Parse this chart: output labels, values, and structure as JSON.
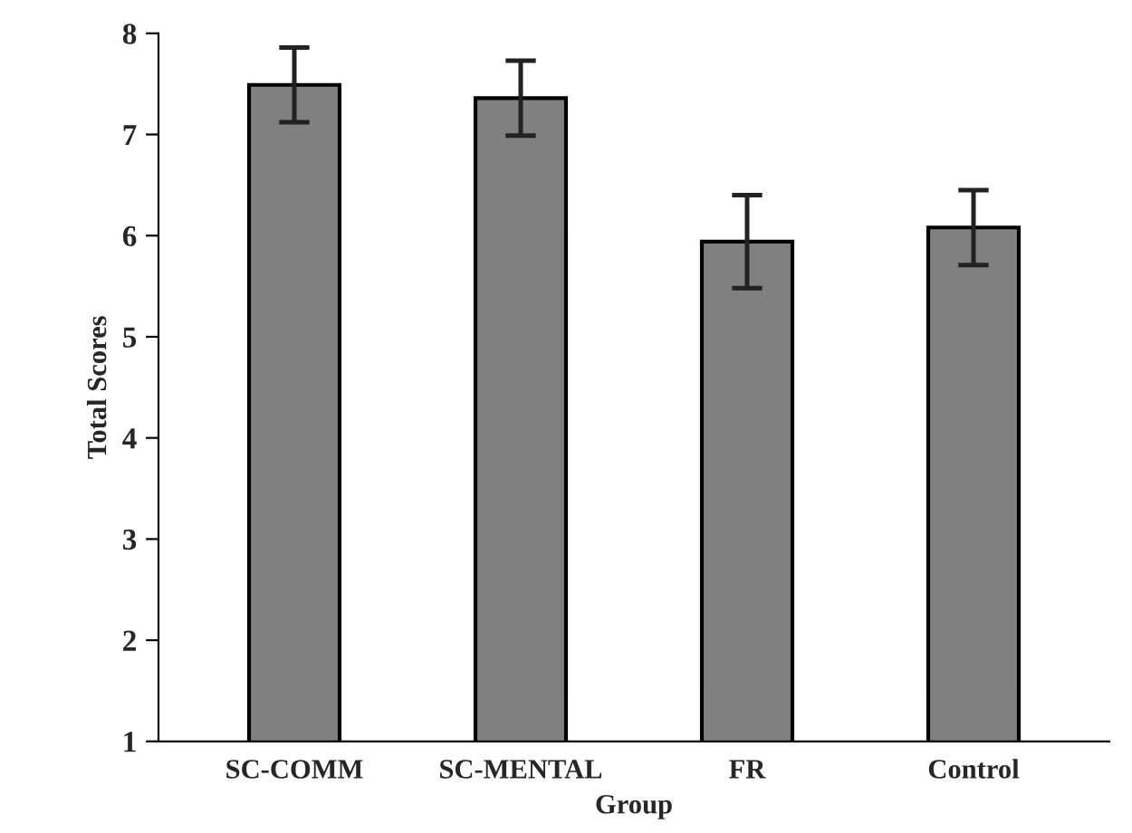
{
  "chart_data": {
    "type": "bar",
    "xlabel": "Group",
    "ylabel": "Total Scores",
    "categories": [
      "SC-COMM",
      "SC-MENTAL",
      "FR",
      "Control"
    ],
    "values": [
      7.49,
      7.36,
      5.94,
      6.08
    ],
    "errors": [
      0.37,
      0.37,
      0.46,
      0.37
    ],
    "color": "#808080",
    "ylim": [
      1,
      8
    ],
    "yticks": [
      1,
      2,
      3,
      4,
      5,
      6,
      7,
      8
    ],
    "grid": false
  }
}
